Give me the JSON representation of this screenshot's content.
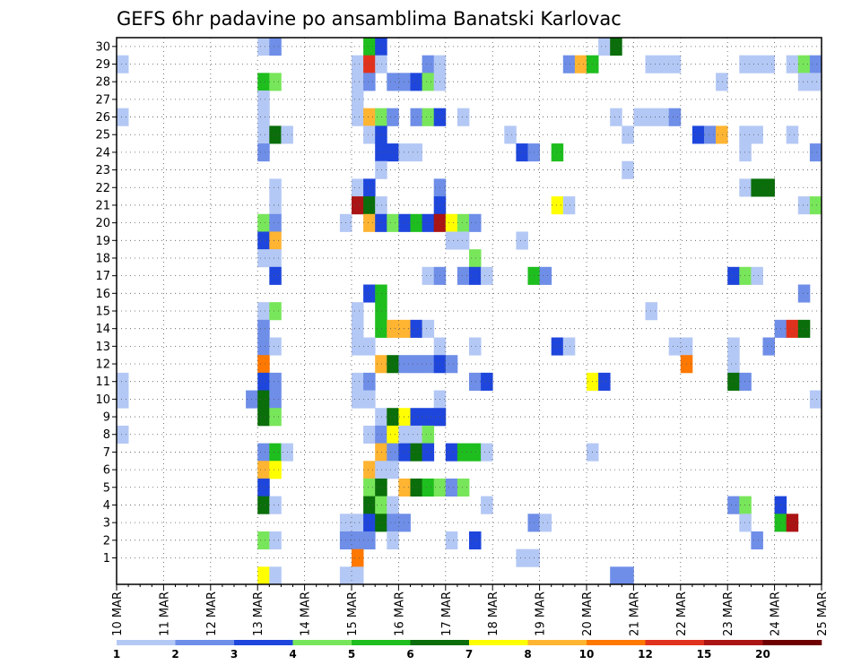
{
  "chart_data": {
    "type": "heatmap",
    "title": "GEFS 6hr padavine po ansamblima Banatski Karlovac",
    "x": {
      "tick_labels": [
        "10 MAR",
        "11 MAR",
        "12 MAR",
        "13 MAR",
        "14 MAR",
        "15 MAR",
        "16 MAR",
        "17 MAR",
        "18 MAR",
        "19 MAR",
        "20 MAR",
        "21 MAR",
        "22 MAR",
        "23 MAR",
        "24 MAR",
        "25 MAR"
      ],
      "steps_per_day": 4,
      "range": [
        0,
        60
      ]
    },
    "y": {
      "tick_labels": [
        "1",
        "2",
        "3",
        "4",
        "5",
        "6",
        "7",
        "8",
        "9",
        "10",
        "11",
        "12",
        "13",
        "14",
        "15",
        "16",
        "17",
        "18",
        "19",
        "20",
        "21",
        "22",
        "23",
        "24",
        "25",
        "26",
        "27",
        "28",
        "29",
        "30"
      ],
      "range": [
        0,
        30
      ]
    },
    "grid": true,
    "legend": {
      "placement": "bottom",
      "levels": [
        "1",
        "2",
        "3",
        "4",
        "5",
        "6",
        "7",
        "8",
        "10",
        "12",
        "15",
        "20"
      ],
      "colors": [
        "#b4c8f5",
        "#6e8ee8",
        "#1e46dc",
        "#78e65a",
        "#1ebe1e",
        "#0a6e0a",
        "#ffff00",
        "#ffb432",
        "#ff7800",
        "#e1321e",
        "#aa1414",
        "#6e0000"
      ]
    },
    "cells": [
      {
        "member": 30,
        "cols": [
          [
            12,
            1
          ],
          [
            13,
            2
          ],
          [
            21,
            5
          ],
          [
            22,
            3
          ],
          [
            41,
            1
          ],
          [
            42,
            6
          ]
        ]
      },
      {
        "member": 29,
        "cols": [
          [
            0,
            1
          ],
          [
            20,
            1
          ],
          [
            21,
            10
          ],
          [
            22,
            1
          ],
          [
            26,
            2
          ],
          [
            27,
            1
          ],
          [
            38,
            2
          ],
          [
            39,
            8
          ],
          [
            40,
            5
          ],
          [
            45,
            1
          ],
          [
            46,
            1
          ],
          [
            47,
            1
          ],
          [
            53,
            1
          ],
          [
            54,
            1
          ],
          [
            55,
            1
          ],
          [
            57,
            1
          ],
          [
            58,
            4
          ],
          [
            59,
            2
          ]
        ]
      },
      {
        "member": 28,
        "cols": [
          [
            12,
            5
          ],
          [
            13,
            4
          ],
          [
            20,
            1
          ],
          [
            21,
            2
          ],
          [
            23,
            2
          ],
          [
            24,
            2
          ],
          [
            25,
            3
          ],
          [
            26,
            4
          ],
          [
            27,
            1
          ],
          [
            51,
            1
          ],
          [
            58,
            1
          ],
          [
            59,
            1
          ]
        ]
      },
      {
        "member": 27,
        "cols": [
          [
            12,
            1
          ],
          [
            20,
            1
          ]
        ]
      },
      {
        "member": 26,
        "cols": [
          [
            0,
            1
          ],
          [
            12,
            1
          ],
          [
            20,
            1
          ],
          [
            21,
            8
          ],
          [
            22,
            4
          ],
          [
            23,
            2
          ],
          [
            25,
            2
          ],
          [
            26,
            4
          ],
          [
            27,
            3
          ],
          [
            29,
            1
          ],
          [
            42,
            1
          ],
          [
            44,
            1
          ],
          [
            45,
            1
          ],
          [
            46,
            1
          ],
          [
            47,
            2
          ]
        ]
      },
      {
        "member": 25,
        "cols": [
          [
            12,
            1
          ],
          [
            13,
            6
          ],
          [
            14,
            1
          ],
          [
            21,
            1
          ],
          [
            22,
            3
          ],
          [
            33,
            1
          ],
          [
            43,
            1
          ],
          [
            49,
            3
          ],
          [
            50,
            2
          ],
          [
            51,
            8
          ],
          [
            53,
            1
          ],
          [
            54,
            1
          ],
          [
            57,
            1
          ]
        ]
      },
      {
        "member": 24,
        "cols": [
          [
            12,
            2
          ],
          [
            22,
            3
          ],
          [
            23,
            3
          ],
          [
            24,
            1
          ],
          [
            25,
            1
          ],
          [
            34,
            3
          ],
          [
            35,
            2
          ],
          [
            37,
            5
          ],
          [
            53,
            1
          ],
          [
            59,
            2
          ]
        ]
      },
      {
        "member": 23,
        "cols": [
          [
            22,
            1
          ],
          [
            43,
            1
          ]
        ]
      },
      {
        "member": 22,
        "cols": [
          [
            13,
            1
          ],
          [
            20,
            1
          ],
          [
            21,
            3
          ],
          [
            27,
            2
          ],
          [
            53,
            1
          ],
          [
            54,
            6
          ],
          [
            55,
            6
          ]
        ]
      },
      {
        "member": 21,
        "cols": [
          [
            13,
            1
          ],
          [
            20,
            11
          ],
          [
            21,
            6
          ],
          [
            22,
            1
          ],
          [
            27,
            3
          ],
          [
            37,
            7
          ],
          [
            38,
            1
          ],
          [
            58,
            1
          ],
          [
            59,
            4
          ]
        ]
      },
      {
        "member": 20,
        "cols": [
          [
            12,
            4
          ],
          [
            13,
            2
          ],
          [
            19,
            1
          ],
          [
            21,
            8
          ],
          [
            22,
            3
          ],
          [
            23,
            4
          ],
          [
            24,
            3
          ],
          [
            25,
            5
          ],
          [
            26,
            3
          ],
          [
            27,
            11
          ],
          [
            28,
            7
          ],
          [
            29,
            4
          ],
          [
            30,
            2
          ]
        ]
      },
      {
        "member": 19,
        "cols": [
          [
            12,
            3
          ],
          [
            13,
            8
          ],
          [
            28,
            1
          ],
          [
            29,
            1
          ],
          [
            34,
            1
          ]
        ]
      },
      {
        "member": 18,
        "cols": [
          [
            12,
            1
          ],
          [
            13,
            1
          ],
          [
            30,
            4
          ]
        ]
      },
      {
        "member": 17,
        "cols": [
          [
            13,
            3
          ],
          [
            26,
            1
          ],
          [
            27,
            2
          ],
          [
            29,
            2
          ],
          [
            30,
            3
          ],
          [
            31,
            1
          ],
          [
            35,
            5
          ],
          [
            36,
            2
          ],
          [
            52,
            3
          ],
          [
            53,
            4
          ],
          [
            54,
            1
          ]
        ]
      },
      {
        "member": 16,
        "cols": [
          [
            21,
            3
          ],
          [
            22,
            5
          ],
          [
            58,
            2
          ]
        ]
      },
      {
        "member": 15,
        "cols": [
          [
            12,
            1
          ],
          [
            13,
            4
          ],
          [
            20,
            1
          ],
          [
            22,
            5
          ],
          [
            45,
            1
          ]
        ]
      },
      {
        "member": 14,
        "cols": [
          [
            12,
            2
          ],
          [
            20,
            1
          ],
          [
            22,
            5
          ],
          [
            23,
            8
          ],
          [
            24,
            8
          ],
          [
            25,
            3
          ],
          [
            26,
            1
          ],
          [
            56,
            2
          ],
          [
            57,
            10
          ],
          [
            58,
            6
          ]
        ]
      },
      {
        "member": 13,
        "cols": [
          [
            12,
            2
          ],
          [
            13,
            1
          ],
          [
            20,
            1
          ],
          [
            21,
            1
          ],
          [
            27,
            1
          ],
          [
            30,
            1
          ],
          [
            37,
            3
          ],
          [
            38,
            1
          ],
          [
            47,
            1
          ],
          [
            48,
            1
          ],
          [
            52,
            1
          ],
          [
            55,
            2
          ]
        ]
      },
      {
        "member": 12,
        "cols": [
          [
            12,
            9
          ],
          [
            22,
            8
          ],
          [
            23,
            6
          ],
          [
            24,
            2
          ],
          [
            25,
            2
          ],
          [
            26,
            2
          ],
          [
            27,
            3
          ],
          [
            28,
            2
          ],
          [
            48,
            9
          ],
          [
            52,
            1
          ]
        ]
      },
      {
        "member": 11,
        "cols": [
          [
            0,
            1
          ],
          [
            12,
            3
          ],
          [
            13,
            2
          ],
          [
            20,
            1
          ],
          [
            21,
            2
          ],
          [
            30,
            2
          ],
          [
            31,
            3
          ],
          [
            40,
            7
          ],
          [
            41,
            3
          ],
          [
            52,
            6
          ],
          [
            53,
            2
          ]
        ]
      },
      {
        "member": 10,
        "cols": [
          [
            0,
            1
          ],
          [
            11,
            2
          ],
          [
            12,
            6
          ],
          [
            13,
            2
          ],
          [
            20,
            1
          ],
          [
            21,
            1
          ],
          [
            27,
            1
          ],
          [
            59,
            1
          ]
        ]
      },
      {
        "member": 9,
        "cols": [
          [
            12,
            6
          ],
          [
            13,
            4
          ],
          [
            22,
            1
          ],
          [
            23,
            6
          ],
          [
            24,
            7
          ],
          [
            25,
            3
          ],
          [
            26,
            3
          ],
          [
            27,
            3
          ]
        ]
      },
      {
        "member": 8,
        "cols": [
          [
            0,
            1
          ],
          [
            21,
            1
          ],
          [
            22,
            2
          ],
          [
            23,
            7
          ],
          [
            24,
            1
          ],
          [
            25,
            1
          ],
          [
            26,
            4
          ]
        ]
      },
      {
        "member": 7,
        "cols": [
          [
            12,
            2
          ],
          [
            13,
            5
          ],
          [
            14,
            1
          ],
          [
            22,
            8
          ],
          [
            23,
            2
          ],
          [
            24,
            3
          ],
          [
            25,
            6
          ],
          [
            26,
            3
          ],
          [
            28,
            3
          ],
          [
            29,
            5
          ],
          [
            30,
            5
          ],
          [
            31,
            1
          ],
          [
            40,
            1
          ]
        ]
      },
      {
        "member": 6,
        "cols": [
          [
            12,
            8
          ],
          [
            13,
            7
          ],
          [
            21,
            8
          ],
          [
            22,
            1
          ],
          [
            23,
            1
          ]
        ]
      },
      {
        "member": 5,
        "cols": [
          [
            12,
            3
          ],
          [
            21,
            4
          ],
          [
            22,
            6
          ],
          [
            24,
            8
          ],
          [
            25,
            6
          ],
          [
            26,
            5
          ],
          [
            27,
            4
          ],
          [
            28,
            2
          ],
          [
            29,
            4
          ]
        ]
      },
      {
        "member": 4,
        "cols": [
          [
            12,
            6
          ],
          [
            13,
            1
          ],
          [
            21,
            6
          ],
          [
            22,
            4
          ],
          [
            23,
            1
          ],
          [
            31,
            1
          ],
          [
            52,
            2
          ],
          [
            53,
            4
          ],
          [
            56,
            3
          ]
        ]
      },
      {
        "member": 3,
        "cols": [
          [
            19,
            1
          ],
          [
            20,
            1
          ],
          [
            21,
            3
          ],
          [
            22,
            6
          ],
          [
            23,
            2
          ],
          [
            24,
            2
          ],
          [
            35,
            2
          ],
          [
            36,
            1
          ],
          [
            53,
            1
          ],
          [
            56,
            5
          ],
          [
            57,
            11
          ]
        ]
      },
      {
        "member": 2,
        "cols": [
          [
            12,
            4
          ],
          [
            13,
            1
          ],
          [
            19,
            2
          ],
          [
            20,
            2
          ],
          [
            21,
            2
          ],
          [
            23,
            1
          ],
          [
            28,
            1
          ],
          [
            30,
            3
          ],
          [
            54,
            2
          ]
        ]
      },
      {
        "member": 1,
        "cols": [
          [
            20,
            9
          ],
          [
            34,
            1
          ],
          [
            35,
            1
          ]
        ]
      },
      {
        "member": 0,
        "cols": [
          [
            12,
            7
          ],
          [
            13,
            1
          ],
          [
            19,
            1
          ],
          [
            20,
            1
          ],
          [
            42,
            2
          ],
          [
            43,
            2
          ]
        ]
      }
    ]
  }
}
